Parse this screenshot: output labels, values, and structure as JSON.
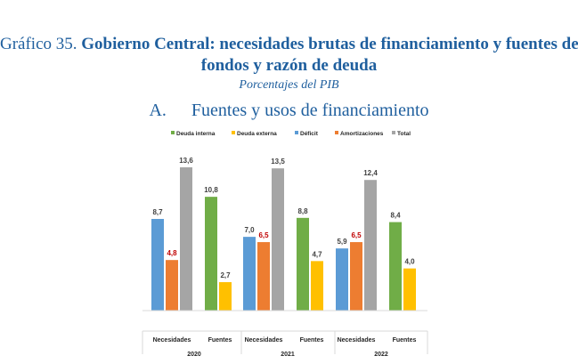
{
  "header": {
    "lead": "Gráfico 35.",
    "title_line1": "Gobierno Central: necesidades brutas de financiamiento y fuentes de",
    "title_line2": "fondos y razón de deuda",
    "subtitle": "Porcentajes del PIB",
    "panel_letter": "A.",
    "panel_title": "Fuentes y usos de financiamiento"
  },
  "colors": {
    "Deuda interna": "#70ad47",
    "Deuda externa": "#ffc000",
    "Déficit": "#5b9bd5",
    "Amortizaciones": "#ed7d31",
    "Total": "#a5a5a5",
    "label_default": "#404040",
    "label_red": "#c00000"
  },
  "chart_data": {
    "type": "bar",
    "legend": [
      "Deuda interna",
      "Deuda externa",
      "Déficit",
      "Amortizaciones",
      "Total"
    ],
    "legend_position": "top",
    "years": [
      "2020",
      "2021",
      "2022"
    ],
    "subcategories": [
      "Necesidades",
      "Fuentes"
    ],
    "ylim": [
      0,
      14
    ],
    "groups": [
      {
        "year": "2020",
        "necesidades": [
          {
            "series": "Déficit",
            "value": 8.7,
            "label": "8,7"
          },
          {
            "series": "Amortizaciones",
            "value": 4.8,
            "label": "4,8",
            "label_color": "red"
          },
          {
            "series": "Total",
            "value": 13.6,
            "label": "13,6"
          }
        ],
        "fuentes": [
          {
            "series": "Deuda interna",
            "value": 10.8,
            "label": "10,8"
          },
          {
            "series": "Deuda externa",
            "value": 2.7,
            "label": "2,7"
          }
        ]
      },
      {
        "year": "2021",
        "necesidades": [
          {
            "series": "Déficit",
            "value": 7.0,
            "label": "7,0"
          },
          {
            "series": "Amortizaciones",
            "value": 6.5,
            "label": "6,5",
            "label_color": "red"
          },
          {
            "series": "Total",
            "value": 13.5,
            "label": "13,5"
          }
        ],
        "fuentes": [
          {
            "series": "Deuda interna",
            "value": 8.8,
            "label": "8,8"
          },
          {
            "series": "Deuda externa",
            "value": 4.7,
            "label": "4,7"
          }
        ]
      },
      {
        "year": "2022",
        "necesidades": [
          {
            "series": "Déficit",
            "value": 5.9,
            "label": "5,9"
          },
          {
            "series": "Amortizaciones",
            "value": 6.5,
            "label": "6,5",
            "label_color": "red"
          },
          {
            "series": "Total",
            "value": 12.4,
            "label": "12,4"
          }
        ],
        "fuentes": [
          {
            "series": "Deuda interna",
            "value": 8.4,
            "label": "8,4"
          },
          {
            "series": "Deuda externa",
            "value": 4.0,
            "label": "4,0"
          }
        ]
      }
    ]
  }
}
